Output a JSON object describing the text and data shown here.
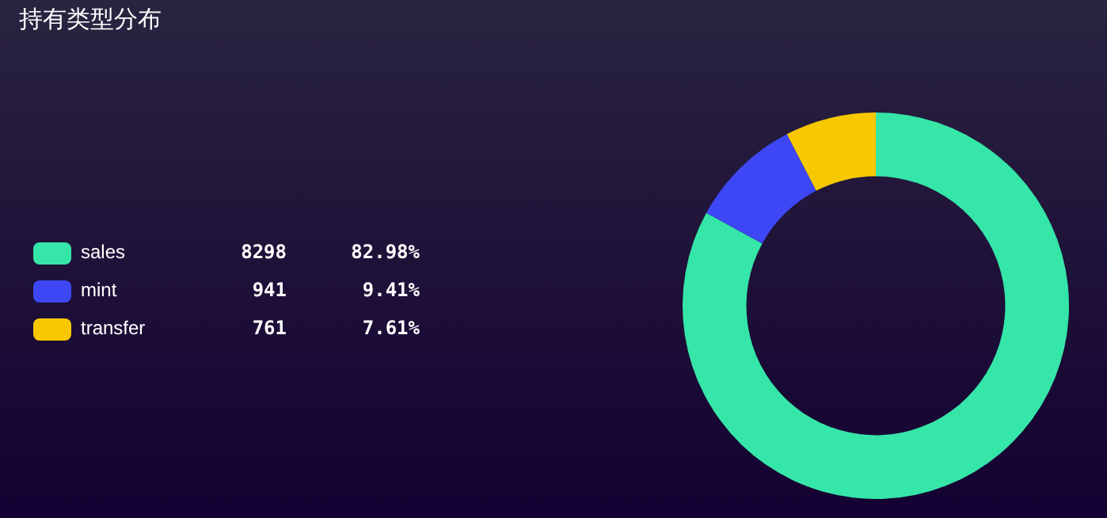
{
  "chart_data": {
    "type": "donut",
    "title": "持有类型分布",
    "categories": [
      "sales",
      "mint",
      "transfer"
    ],
    "values": [
      82.98,
      9.41,
      7.61
    ],
    "colors": [
      "#35e6a8",
      "#3d47f5",
      "#f7c800"
    ],
    "value_labels": [
      "82.98%",
      "9.41%",
      "7.61%"
    ],
    "annotations": [
      "8298",
      "941",
      "761"
    ],
    "legend": "left"
  }
}
